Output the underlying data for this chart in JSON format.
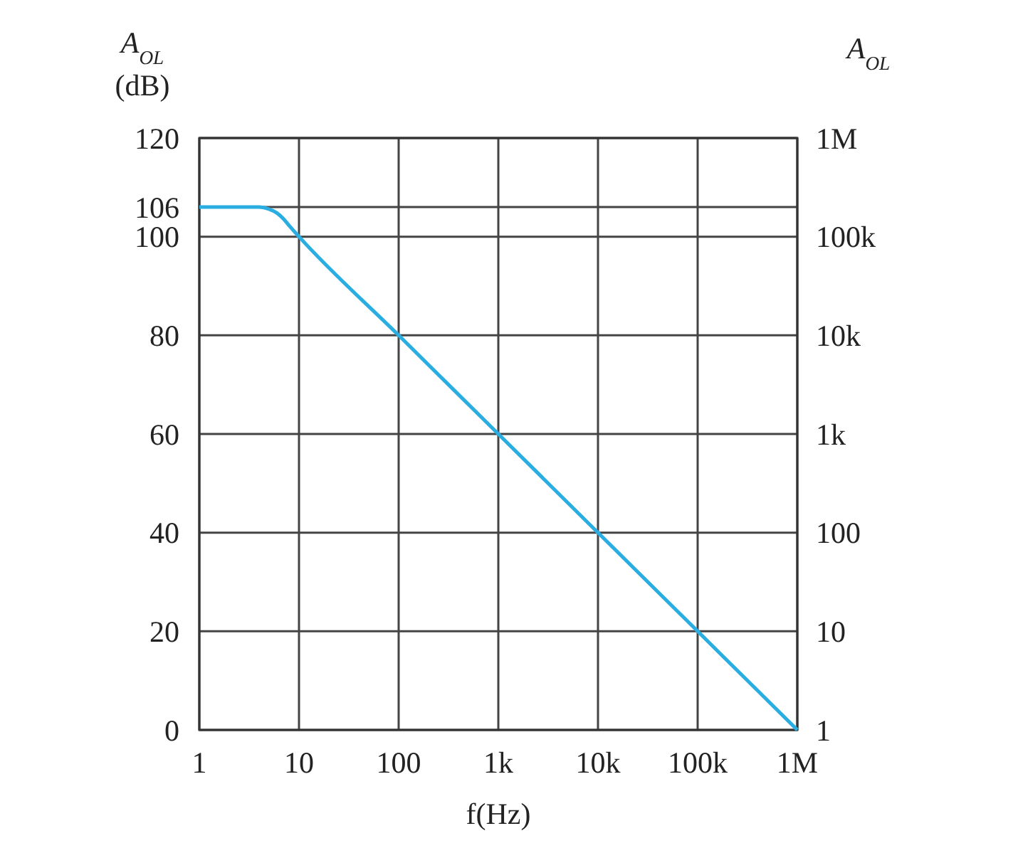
{
  "chart_data": {
    "type": "line",
    "xlabel": "f(Hz)",
    "ylabel": "A$_{OL}$ (dB)",
    "y2label": "A$_{OL}$",
    "log": "x",
    "x": [
      1,
      4,
      5,
      6,
      7,
      8,
      10,
      100,
      1000,
      10000,
      100000,
      1000000
    ],
    "series": [
      {
        "color": "#2aaee2",
        "values": [
          106,
          106,
          105.6,
          104.8,
          103.6,
          102.2,
          100,
          80,
          60,
          40,
          20,
          0
        ]
      }
    ],
    "xlim": [
      1,
      1000000
    ],
    "xticks": [
      1,
      10,
      100,
      {
        "value": 1000,
        "label": "1k"
      },
      {
        "value": 10000,
        "label": "10k"
      },
      {
        "value": 100000,
        "label": "100k"
      },
      {
        "value": 1000000,
        "label": "1M"
      }
    ],
    "ylim": [
      0,
      120
    ],
    "yticks": [
      0,
      20,
      40,
      60,
      80,
      100,
      106,
      120
    ],
    "annotations": [
      "1",
      "10",
      "100",
      "1k",
      "10k",
      "100k",
      "1M"
    ],
    "grid": true,
    "line_style": "solid",
    "marker": "none"
  }
}
